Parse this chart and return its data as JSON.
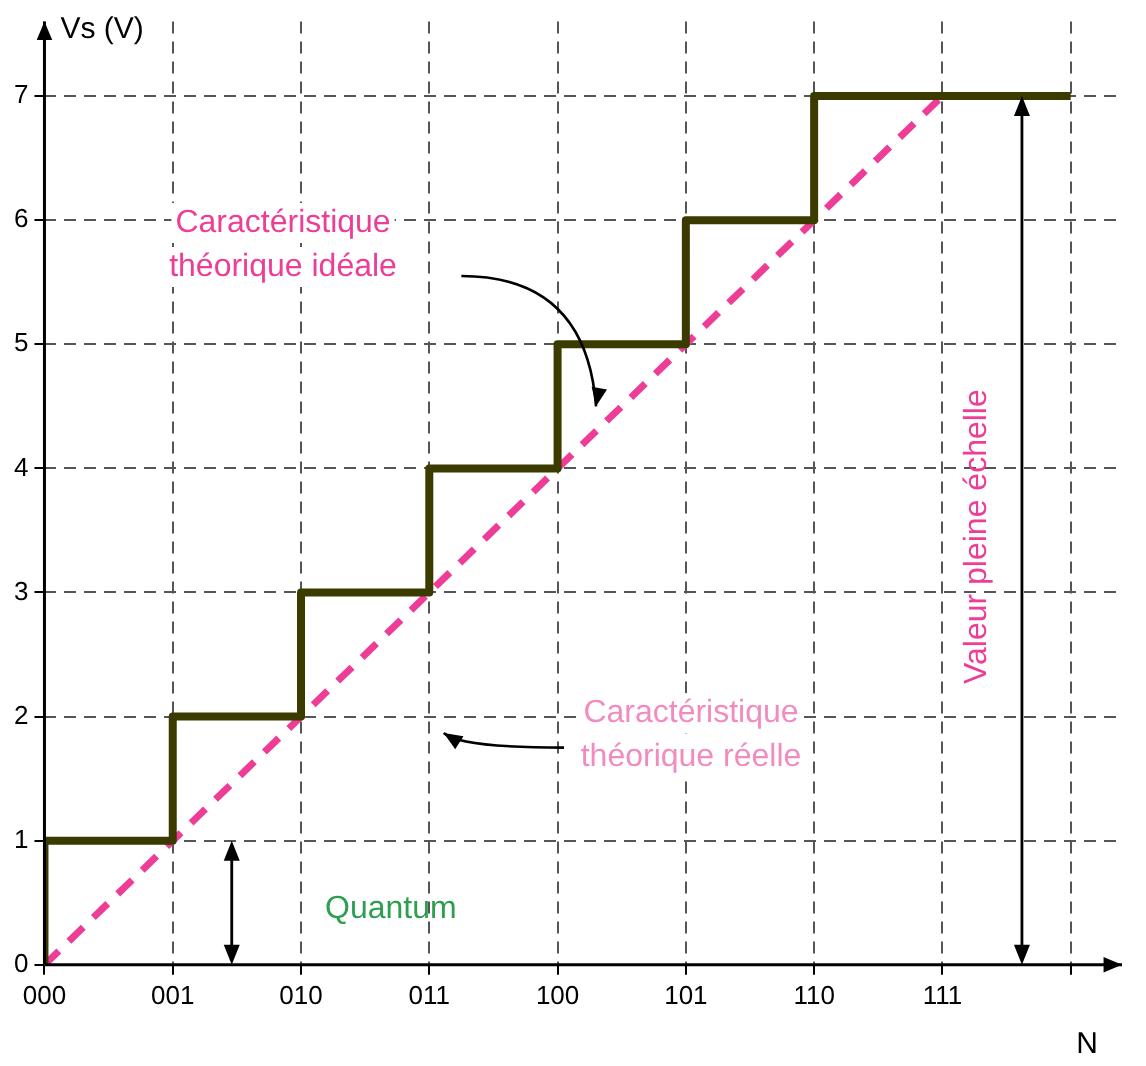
{
  "chart_data": {
    "type": "step",
    "xlabel": "N",
    "ylabel": "Vs (V)",
    "categories": [
      "000",
      "001",
      "010",
      "011",
      "100",
      "101",
      "110",
      "111",
      null
    ],
    "ylim": [
      0,
      7.6
    ],
    "yticks": [
      0,
      1,
      2,
      3,
      4,
      5,
      6,
      7
    ],
    "series": [
      {
        "color": "#3b3b00",
        "values": [
          0,
          1,
          2,
          3,
          4,
          5,
          6,
          7,
          7
        ]
      },
      {
        "type": "line",
        "line_style": "dashed",
        "color": "#ee3d96",
        "values": [
          0,
          1,
          2,
          3,
          4,
          5,
          6,
          7,
          null
        ]
      }
    ],
    "annotations": [
      "Caractéristique théorique réelle",
      "Caractéristique théorique idéale",
      "Quantum",
      "Valeur pleine échelle"
    ],
    "grid": true,
    "legend": false,
    "marker": "none"
  }
}
